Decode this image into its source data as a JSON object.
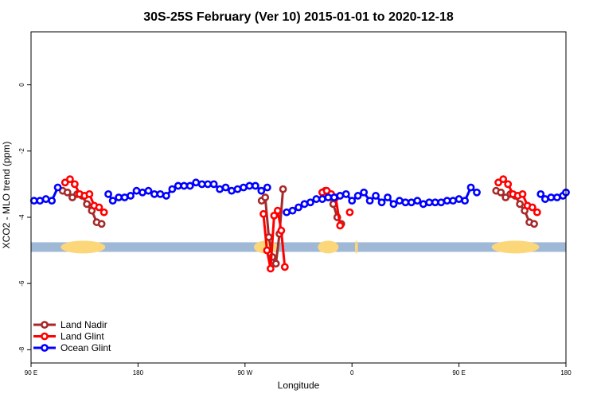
{
  "chart_data": {
    "type": "line",
    "title": "30S-25S February (Ver 10)   2015-01-01 to 2020-12-18",
    "xlabel": "Longitude",
    "ylabel": "XCO2 - MLO trend (ppm)",
    "xlim": [
      90,
      450
    ],
    "ylim": [
      -8.4,
      1.6
    ],
    "xticks": [
      {
        "value": 90,
        "label": "90 E"
      },
      {
        "value": 162,
        "label": "180"
      },
      {
        "value": 234,
        "label": "90 W"
      },
      {
        "value": 306,
        "label": "0"
      },
      {
        "value": 378,
        "label": "90 E"
      },
      {
        "value": 450,
        "label": "180"
      }
    ],
    "yticks": [
      {
        "value": 0,
        "label": "0"
      },
      {
        "value": -2,
        "label": "-2"
      },
      {
        "value": -4,
        "label": "-4"
      },
      {
        "value": -6,
        "label": "-6"
      },
      {
        "value": -8,
        "label": "-8"
      }
    ],
    "band": {
      "y": -4.9,
      "color": "#9fb8d6",
      "highlight_color": "#fcd77a",
      "highlights": [
        [
          110,
          140
        ],
        [
          240,
          256
        ],
        [
          283,
          297
        ],
        [
          308,
          310
        ],
        [
          400,
          432
        ]
      ]
    },
    "legend_position": "bottom-left",
    "series": [
      {
        "name": "Land Nadir",
        "color": "#a52a2a",
        "segments": [
          [
            [
              111.3,
              -3.2
            ],
            [
              114.5,
              -3.25
            ],
            [
              117.8,
              -3.4
            ],
            [
              121.1,
              -3.3
            ],
            [
              124.4,
              -3.35
            ],
            [
              127.6,
              -3.6
            ],
            [
              130.9,
              -3.8
            ],
            [
              134.2,
              -4.15
            ],
            [
              137.5,
              -4.2
            ]
          ],
          [
            [
              245.2,
              -3.5
            ],
            [
              247.6,
              -3.4
            ],
            [
              250.0,
              -4.6
            ],
            [
              252.4,
              -5.2
            ],
            [
              254.8,
              -5.4
            ],
            [
              257.2,
              -4.5
            ],
            [
              259.6,
              -3.15
            ]
          ],
          [
            [
              288.0,
              -3.2
            ],
            [
              290.7,
              -3.35
            ],
            [
              293.4,
              -3.6
            ],
            [
              296.1,
              -4.0
            ],
            [
              298.8,
              -4.2
            ]
          ],
          [
            [
              403.0,
              -3.2
            ],
            [
              406.2,
              -3.25
            ],
            [
              409.4,
              -3.4
            ],
            [
              412.6,
              -3.3
            ],
            [
              415.8,
              -3.35
            ],
            [
              419.0,
              -3.6
            ],
            [
              422.2,
              -3.8
            ],
            [
              425.4,
              -4.15
            ],
            [
              428.6,
              -4.2
            ]
          ]
        ]
      },
      {
        "name": "Land Glint",
        "color": "#ff0000",
        "segments": [
          [
            [
              112.9,
              -2.95
            ],
            [
              116.2,
              -2.85
            ],
            [
              119.4,
              -3.0
            ],
            [
              122.7,
              -3.3
            ],
            [
              126.0,
              -3.35
            ],
            [
              129.3,
              -3.3
            ],
            [
              132.5,
              -3.65
            ],
            [
              135.8,
              -3.7
            ],
            [
              139.1,
              -3.85
            ]
          ],
          [
            [
              246.4,
              -3.9
            ],
            [
              248.8,
              -5.0
            ],
            [
              251.2,
              -5.55
            ],
            [
              253.6,
              -3.95
            ],
            [
              256.0,
              -3.8
            ],
            [
              258.4,
              -4.4
            ],
            [
              260.8,
              -5.5
            ]
          ],
          [
            [
              286.0,
              -3.25
            ],
            [
              289.0,
              -3.2
            ],
            [
              292.0,
              -3.3
            ],
            [
              295.0,
              -3.4
            ],
            [
              298.0,
              -4.25
            ]
          ],
          [
            [
              304.5,
              -3.85
            ]
          ],
          [
            [
              404.5,
              -2.95
            ],
            [
              407.8,
              -2.85
            ],
            [
              411.0,
              -3.0
            ],
            [
              414.3,
              -3.3
            ],
            [
              417.6,
              -3.35
            ],
            [
              420.8,
              -3.3
            ],
            [
              424.1,
              -3.65
            ],
            [
              427.4,
              -3.7
            ],
            [
              430.6,
              -3.85
            ]
          ]
        ]
      },
      {
        "name": "Ocean Glint",
        "color": "#0000ff",
        "segments": [
          [
            [
              92,
              -3.5
            ],
            [
              96,
              -3.5
            ],
            [
              100,
              -3.45
            ],
            [
              104,
              -3.5
            ],
            [
              108,
              -3.1
            ]
          ],
          [
            [
              142,
              -3.3
            ],
            [
              145,
              -3.5
            ],
            [
              149,
              -3.4
            ],
            [
              153,
              -3.4
            ],
            [
              157,
              -3.35
            ],
            [
              161,
              -3.2
            ],
            [
              165,
              -3.25
            ],
            [
              169,
              -3.2
            ],
            [
              173,
              -3.3
            ],
            [
              177,
              -3.3
            ],
            [
              181,
              -3.35
            ],
            [
              185,
              -3.15
            ],
            [
              189,
              -3.05
            ],
            [
              193,
              -3.05
            ],
            [
              197,
              -3.05
            ],
            [
              201,
              -2.95
            ],
            [
              205,
              -3.0
            ],
            [
              209,
              -3.0
            ],
            [
              213,
              -3.0
            ],
            [
              217,
              -3.15
            ],
            [
              221,
              -3.1
            ],
            [
              225,
              -3.2
            ],
            [
              229,
              -3.15
            ],
            [
              233,
              -3.1
            ],
            [
              237,
              -3.05
            ],
            [
              241,
              -3.05
            ],
            [
              245,
              -3.2
            ],
            [
              249,
              -3.1
            ]
          ],
          [
            [
              262,
              -3.85
            ],
            [
              266,
              -3.8
            ],
            [
              270,
              -3.7
            ],
            [
              274,
              -3.6
            ],
            [
              278,
              -3.55
            ],
            [
              282,
              -3.45
            ],
            [
              286,
              -3.45
            ],
            [
              290,
              -3.4
            ],
            [
              294,
              -3.4
            ],
            [
              298,
              -3.35
            ],
            [
              302,
              -3.3
            ],
            [
              306,
              -3.5
            ],
            [
              310,
              -3.35
            ],
            [
              314,
              -3.25
            ],
            [
              318,
              -3.5
            ],
            [
              322,
              -3.35
            ],
            [
              326,
              -3.55
            ],
            [
              330,
              -3.4
            ],
            [
              334,
              -3.6
            ],
            [
              338,
              -3.5
            ],
            [
              342,
              -3.55
            ],
            [
              346,
              -3.55
            ],
            [
              350,
              -3.5
            ],
            [
              354,
              -3.6
            ],
            [
              358,
              -3.55
            ],
            [
              362,
              -3.55
            ],
            [
              366,
              -3.55
            ],
            [
              370,
              -3.5
            ],
            [
              374,
              -3.5
            ],
            [
              378,
              -3.45
            ],
            [
              382,
              -3.5
            ],
            [
              386,
              -3.1
            ],
            [
              390,
              -3.25
            ]
          ],
          [
            [
              433,
              -3.3
            ],
            [
              436,
              -3.45
            ],
            [
              440,
              -3.4
            ],
            [
              444,
              -3.4
            ],
            [
              448,
              -3.35
            ],
            [
              450,
              -3.25
            ]
          ]
        ]
      }
    ]
  }
}
